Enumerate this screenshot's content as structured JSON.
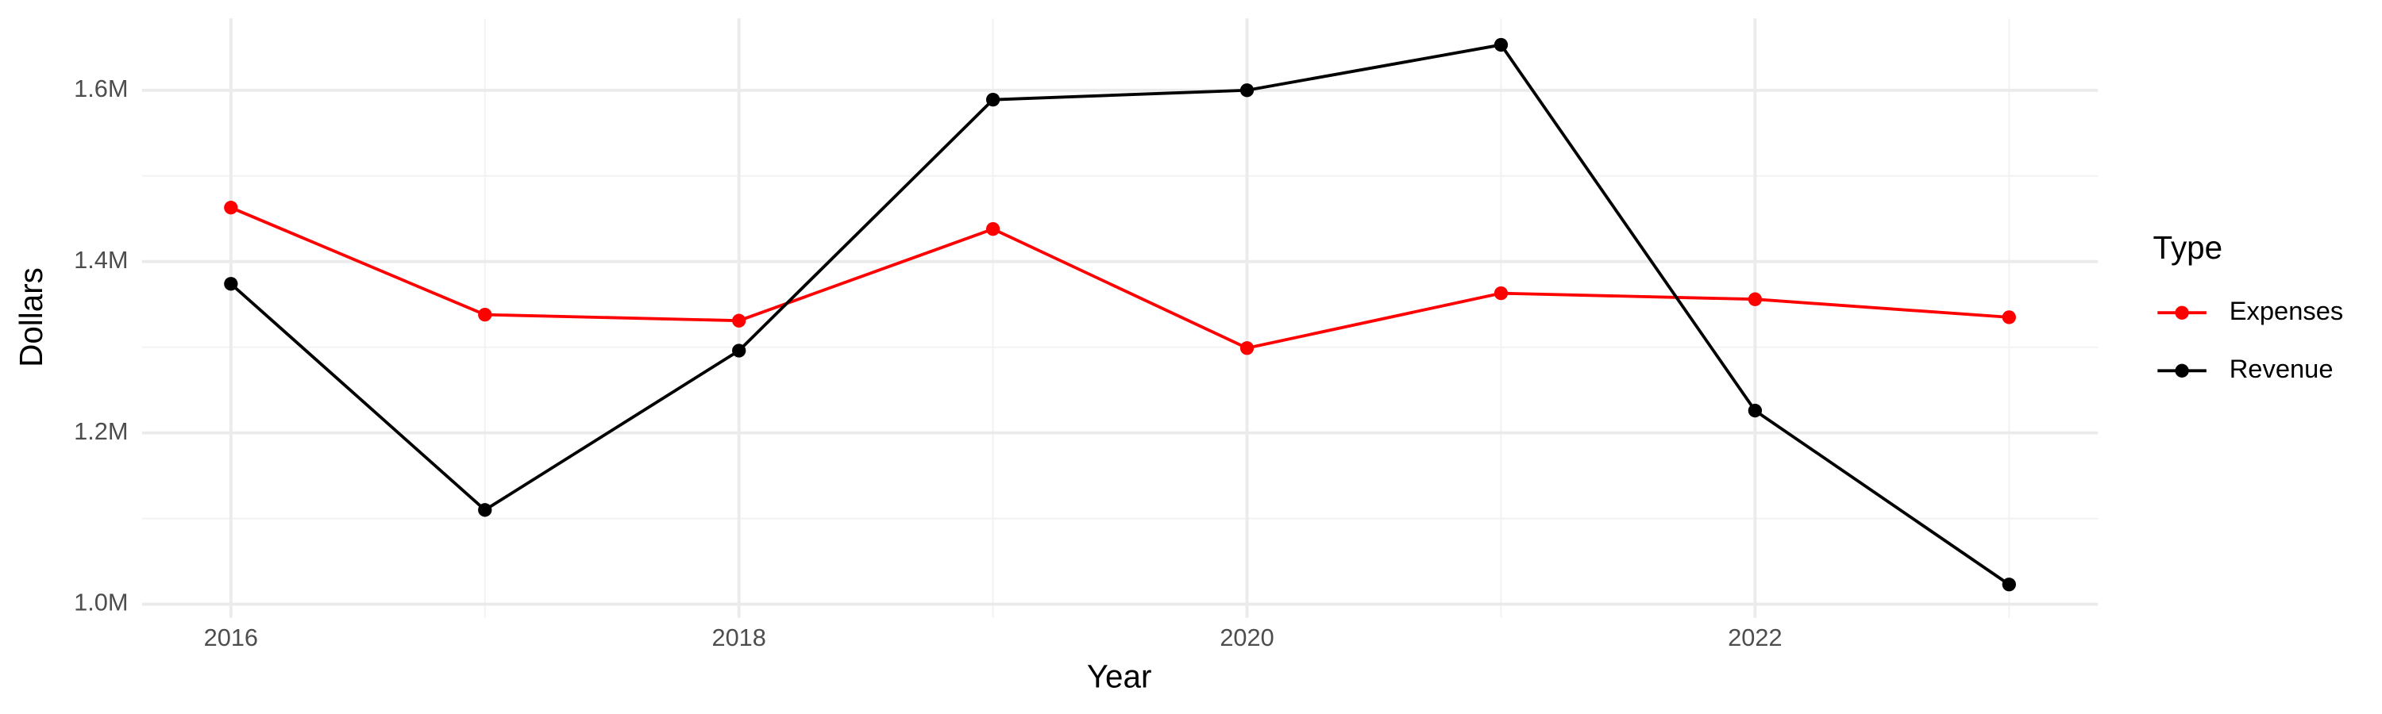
{
  "chart_data": {
    "type": "line",
    "x_label": "Year",
    "y_label": "Dollars",
    "x": [
      2016,
      2017,
      2018,
      2019,
      2020,
      2021,
      2022,
      2023
    ],
    "series": [
      {
        "name": "Expenses",
        "color": "#ff0000",
        "values": [
          1463000,
          1338000,
          1331000,
          1438000,
          1299000,
          1363000,
          1356000,
          1335000
        ]
      },
      {
        "name": "Revenue",
        "color": "#000000",
        "values": [
          1374000,
          1110000,
          1296000,
          1589000,
          1600000,
          1653000,
          1226000,
          1023000
        ]
      }
    ],
    "xlim": [
      2015.65,
      2023.35
    ],
    "xticks": [
      2016,
      2018,
      2020,
      2022
    ],
    "ylim": [
      984000,
      1684000
    ],
    "yticks": [
      {
        "value": 1000000,
        "label": "1.0M"
      },
      {
        "value": 1200000,
        "label": "1.2M"
      },
      {
        "value": 1400000,
        "label": "1.4M"
      },
      {
        "value": 1600000,
        "label": "1.6M"
      }
    ],
    "grid": true,
    "legend_title": "Type",
    "legend_position": "right"
  }
}
